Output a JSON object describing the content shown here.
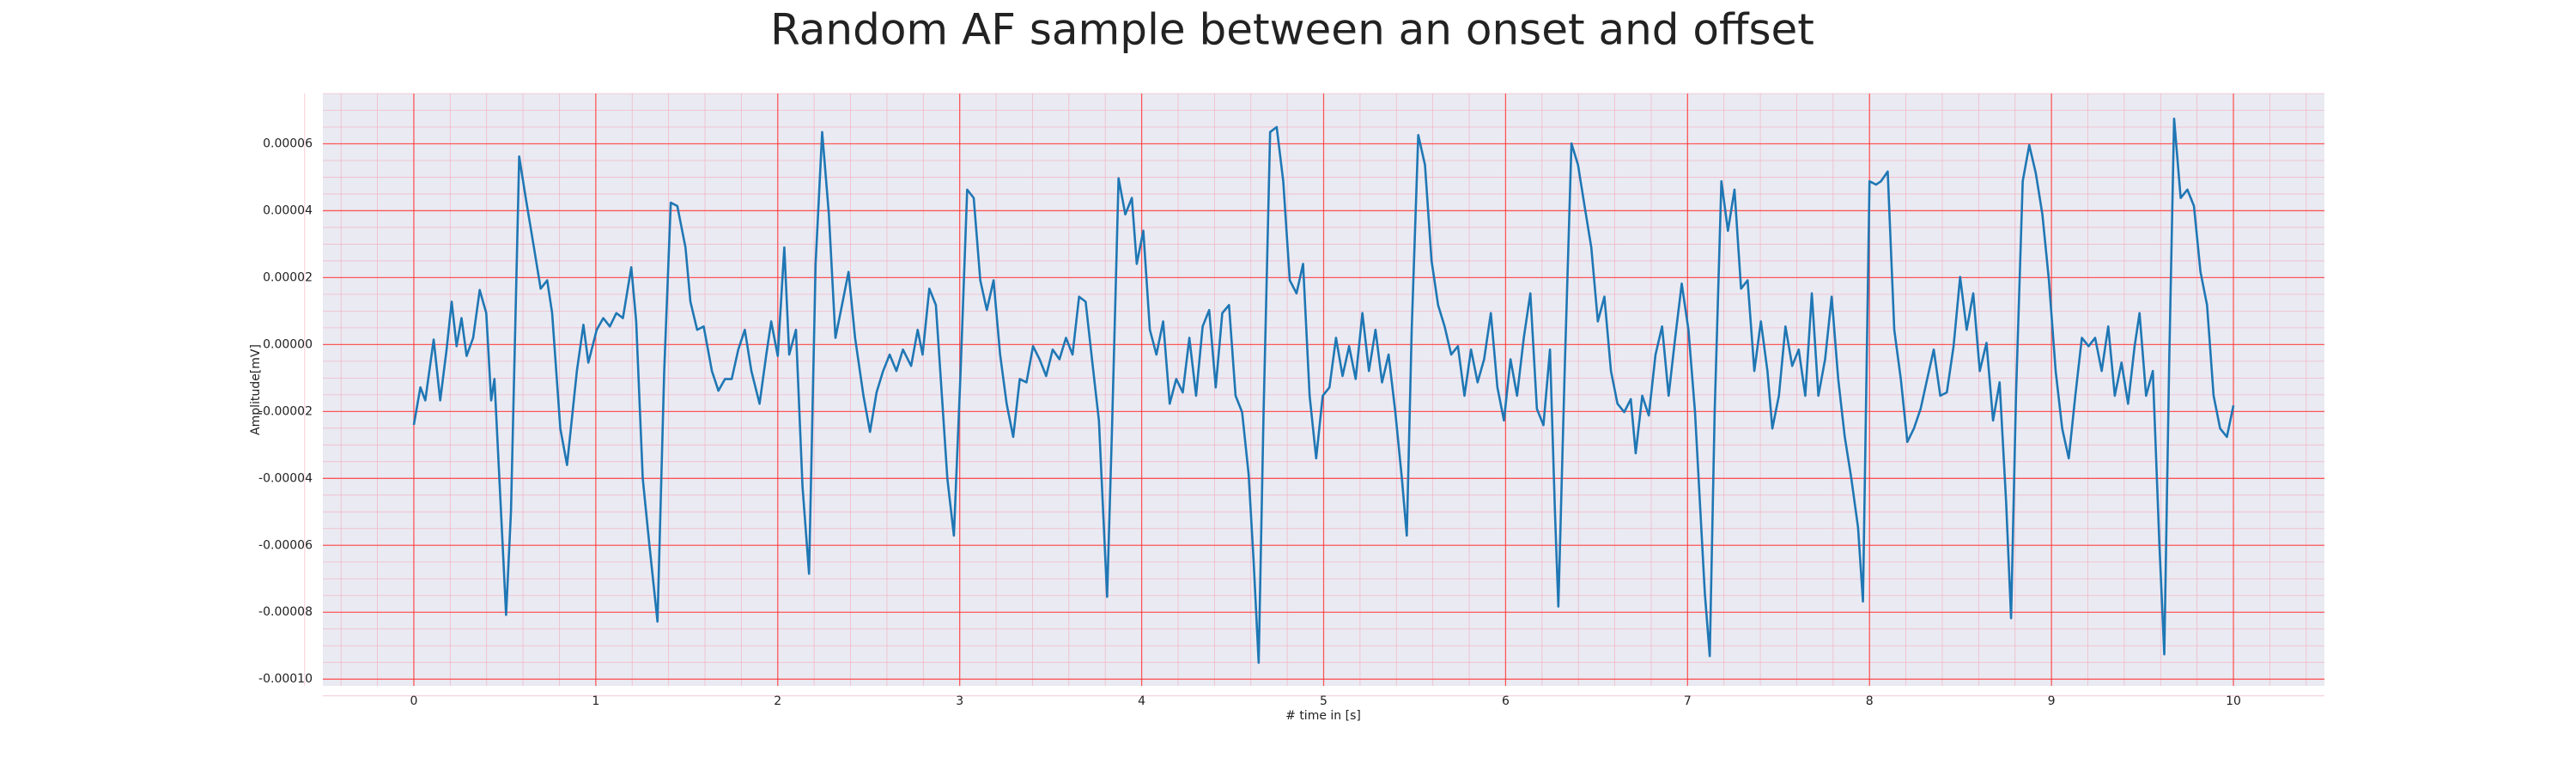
{
  "chart_data": {
    "type": "line",
    "title": "Random AF sample between an onset and offset",
    "xlabel": "# time in [s]",
    "ylabel": "Amplitude[mV]",
    "color": "#1f77b4",
    "grid": true,
    "minor_grid": true,
    "xlim": [
      -0.5,
      10.5
    ],
    "ylim": [
      -0.000102,
      7.5e-05
    ],
    "xticks": [
      0,
      1,
      2,
      3,
      4,
      5,
      6,
      7,
      8,
      9,
      10
    ],
    "yticks": [
      {
        "value": -0.0001,
        "label": "-0.00010"
      },
      {
        "value": -8e-05,
        "label": "-0.00008"
      },
      {
        "value": -6e-05,
        "label": "-0.00006"
      },
      {
        "value": -4e-05,
        "label": "-0.00004"
      },
      {
        "value": -2e-05,
        "label": "-0.00002"
      },
      {
        "value": 0,
        "label": "0.00000"
      },
      {
        "value": 2e-05,
        "label": "0.00002"
      },
      {
        "value": 4e-05,
        "label": "0.00004"
      },
      {
        "value": 6e-05,
        "label": "0.00006"
      }
    ],
    "x": [
      0,
      0.036,
      0.063,
      0.109,
      0.145,
      0.18,
      0.208,
      0.235,
      0.262,
      0.29,
      0.326,
      0.362,
      0.398,
      0.425,
      0.443,
      0.47,
      0.507,
      0.534,
      0.579,
      0.615,
      0.66,
      0.697,
      0.733,
      0.76,
      0.805,
      0.842,
      0.896,
      0.932,
      0.959,
      1.005,
      1.041,
      1.077,
      1.113,
      1.149,
      1.195,
      1.222,
      1.258,
      1.294,
      1.339,
      1.376,
      1.412,
      1.448,
      1.493,
      1.52,
      1.557,
      1.593,
      1.638,
      1.674,
      1.71,
      1.747,
      1.783,
      1.819,
      1.855,
      1.9,
      1.937,
      1.964,
      2.0,
      2.036,
      2.063,
      2.1,
      2.136,
      2.172,
      2.208,
      2.244,
      2.281,
      2.317,
      2.353,
      2.389,
      2.425,
      2.471,
      2.507,
      2.543,
      2.579,
      2.615,
      2.652,
      2.688,
      2.733,
      2.769,
      2.796,
      2.833,
      2.869,
      2.905,
      2.932,
      2.968,
      3.005,
      3.041,
      3.077,
      3.113,
      3.149,
      3.186,
      3.222,
      3.258,
      3.294,
      3.33,
      3.367,
      3.403,
      3.439,
      3.475,
      3.511,
      3.548,
      3.584,
      3.62,
      3.656,
      3.692,
      3.729,
      3.765,
      3.81,
      3.837,
      3.873,
      3.91,
      3.946,
      3.973,
      4.009,
      4.045,
      4.081,
      4.118,
      4.154,
      4.19,
      4.226,
      4.262,
      4.299,
      4.335,
      4.371,
      4.407,
      4.443,
      4.48,
      4.516,
      4.552,
      4.588,
      4.615,
      4.643,
      4.67,
      4.706,
      4.742,
      4.778,
      4.814,
      4.851,
      4.887,
      4.923,
      4.959,
      4.995,
      5.032,
      5.068,
      5.104,
      5.14,
      5.176,
      5.213,
      5.249,
      5.285,
      5.321,
      5.357,
      5.394,
      5.43,
      5.457,
      5.484,
      5.52,
      5.557,
      5.593,
      5.629,
      5.665,
      5.701,
      5.738,
      5.774,
      5.81,
      5.846,
      5.882,
      5.919,
      5.955,
      5.991,
      6.027,
      6.063,
      6.1,
      6.136,
      6.172,
      6.208,
      6.244,
      6.271,
      6.29,
      6.326,
      6.362,
      6.398,
      6.434,
      6.471,
      6.507,
      6.543,
      6.579,
      6.615,
      6.652,
      6.688,
      6.715,
      6.751,
      6.787,
      6.824,
      6.86,
      6.896,
      6.932,
      6.968,
      7.005,
      7.041,
      7.068,
      7.095,
      7.122,
      7.149,
      7.186,
      7.222,
      7.258,
      7.294,
      7.33,
      7.367,
      7.403,
      7.439,
      7.466,
      7.502,
      7.538,
      7.575,
      7.611,
      7.647,
      7.683,
      7.719,
      7.756,
      7.792,
      7.828,
      7.864,
      7.9,
      7.937,
      7.964,
      8.0,
      8.036,
      8.063,
      8.1,
      8.136,
      8.172,
      8.208,
      8.244,
      8.281,
      8.317,
      8.353,
      8.389,
      8.425,
      8.462,
      8.498,
      8.534,
      8.57,
      8.606,
      8.643,
      8.679,
      8.715,
      8.751,
      8.778,
      8.805,
      8.842,
      8.878,
      8.914,
      8.95,
      8.986,
      9.023,
      9.059,
      9.095,
      9.131,
      9.167,
      9.204,
      9.24,
      9.276,
      9.312,
      9.348,
      9.385,
      9.421,
      9.457,
      9.484,
      9.52,
      9.557,
      9.593,
      9.62,
      9.647,
      9.674,
      9.71,
      9.747,
      9.783,
      9.819,
      9.855,
      9.891,
      9.927,
      9.964,
      10.0
    ],
    "values": [
      -2.4e-05,
      -1.28e-05,
      -1.67e-05,
      1.5e-06,
      -1.67e-05,
      -1.5e-06,
      1.28e-05,
      -5e-07,
      7.9e-06,
      -3.4e-06,
      2e-06,
      1.63e-05,
      9.4e-06,
      -1.67e-05,
      -1.03e-05,
      -4e-05,
      -8.08e-05,
      -4.97e-05,
      5.62e-05,
      4.38e-05,
      2.9e-05,
      1.67e-05,
      1.92e-05,
      9.4e-06,
      -2.51e-05,
      -3.6e-05,
      -7.9e-06,
      5.9e-06,
      -5.4e-06,
      4.4e-06,
      7.9e-06,
      5.4e-06,
      9.4e-06,
      7.9e-06,
      2.31e-05,
      6.9e-06,
      -4e-05,
      -5.96e-05,
      -8.28e-05,
      -7.9e-06,
      4.24e-05,
      4.14e-05,
      2.9e-05,
      1.28e-05,
      4.4e-06,
      5.4e-06,
      -7.9e-06,
      -1.38e-05,
      -1.03e-05,
      -1.03e-05,
      -1.5e-06,
      4.4e-06,
      -7.9e-06,
      -1.77e-05,
      -3e-06,
      6.9e-06,
      -3.4e-06,
      2.9e-05,
      -3e-06,
      4.4e-06,
      -4.24e-05,
      -6.85e-05,
      2.41e-05,
      6.35e-05,
      3.89e-05,
      2e-06,
      1.18e-05,
      2.17e-05,
      2e-06,
      -1.53e-05,
      -2.61e-05,
      -1.43e-05,
      -7.9e-06,
      -3e-06,
      -7.9e-06,
      -1.5e-06,
      -6.4e-06,
      4.4e-06,
      -3e-06,
      1.67e-05,
      1.18e-05,
      -1.77e-05,
      -4e-05,
      -5.71e-05,
      -7.9e-06,
      4.63e-05,
      4.38e-05,
      1.92e-05,
      1.03e-05,
      1.92e-05,
      -3e-06,
      -1.77e-05,
      -2.76e-05,
      -1.03e-05,
      -1.13e-05,
      -5e-07,
      -4.4e-06,
      -9.4e-06,
      -1.5e-06,
      -4.4e-06,
      2e-06,
      -3e-06,
      1.43e-05,
      1.28e-05,
      -5.4e-06,
      -2.27e-05,
      -7.54e-05,
      -2.51e-05,
      4.97e-05,
      3.89e-05,
      4.38e-05,
      2.41e-05,
      3.4e-05,
      4.4e-06,
      -3e-06,
      6.9e-06,
      -1.77e-05,
      -1.03e-05,
      -1.43e-05,
      2e-06,
      -1.53e-05,
      5.4e-06,
      1.03e-05,
      -1.28e-05,
      9.4e-06,
      1.18e-05,
      -1.53e-05,
      -2.02e-05,
      -3.89e-05,
      -6.45e-05,
      -9.51e-05,
      -2.02e-05,
      6.35e-05,
      6.5e-05,
      4.88e-05,
      1.92e-05,
      1.53e-05,
      2.41e-05,
      -1.53e-05,
      -3.4e-05,
      -1.53e-05,
      -1.28e-05,
      2e-06,
      -9.4e-06,
      -5e-07,
      -1.03e-05,
      9.4e-06,
      -7.9e-06,
      4.4e-06,
      -1.13e-05,
      -3e-06,
      -2.02e-05,
      -4e-05,
      -5.71e-05,
      4.4e-06,
      6.26e-05,
      5.37e-05,
      2.51e-05,
      1.18e-05,
      5.4e-06,
      -3e-06,
      -5e-07,
      -1.53e-05,
      -1.5e-06,
      -1.13e-05,
      -4.4e-06,
      9.4e-06,
      -1.28e-05,
      -2.27e-05,
      -4.4e-06,
      -1.53e-05,
      2e-06,
      1.53e-05,
      -1.92e-05,
      -2.41e-05,
      -1.5e-06,
      -4.97e-05,
      -7.83e-05,
      -5.4e-06,
      6.01e-05,
      5.37e-05,
      4.14e-05,
      2.9e-05,
      6.9e-06,
      1.43e-05,
      -7.9e-06,
      -1.77e-05,
      -2.02e-05,
      -1.63e-05,
      -3.25e-05,
      -1.53e-05,
      -2.12e-05,
      -3e-06,
      5.4e-06,
      -1.53e-05,
      2e-06,
      1.82e-05,
      4.4e-06,
      -2.02e-05,
      -4.73e-05,
      -7.44e-05,
      -9.31e-05,
      -2.02e-05,
      4.88e-05,
      3.4e-05,
      4.63e-05,
      1.67e-05,
      1.92e-05,
      -7.9e-06,
      6.9e-06,
      -7.9e-06,
      -2.51e-05,
      -1.53e-05,
      5.4e-06,
      -6.4e-06,
      -1.5e-06,
      -1.53e-05,
      1.53e-05,
      -1.53e-05,
      -4.4e-06,
      1.43e-05,
      -1.03e-05,
      -2.76e-05,
      -4e-05,
      -5.47e-05,
      -7.68e-05,
      4.88e-05,
      4.78e-05,
      4.88e-05,
      5.17e-05,
      4.4e-06,
      -1.03e-05,
      -2.91e-05,
      -2.51e-05,
      -1.92e-05,
      -1.03e-05,
      -1.5e-06,
      -1.53e-05,
      -1.43e-05,
      -5e-07,
      2.02e-05,
      4.4e-06,
      1.53e-05,
      -7.9e-06,
      5e-07,
      -2.27e-05,
      -1.13e-05,
      -4.73e-05,
      -8.18e-05,
      -1.53e-05,
      4.88e-05,
      5.96e-05,
      5.12e-05,
      3.89e-05,
      1.92e-05,
      -7.9e-06,
      -2.51e-05,
      -3.4e-05,
      -1.53e-05,
      2e-06,
      -5e-07,
      2e-06,
      -7.9e-06,
      5.4e-06,
      -1.53e-05,
      -5.4e-06,
      -1.77e-05,
      -5e-07,
      9.4e-06,
      -1.53e-05,
      -7.9e-06,
      -5.96e-05,
      -9.26e-05,
      -5.4e-06,
      6.75e-05,
      4.38e-05,
      4.63e-05,
      4.14e-05,
      2.17e-05,
      1.18e-05,
      -1.53e-05,
      -2.51e-05,
      -2.76e-05,
      -1.82e-05
    ]
  }
}
